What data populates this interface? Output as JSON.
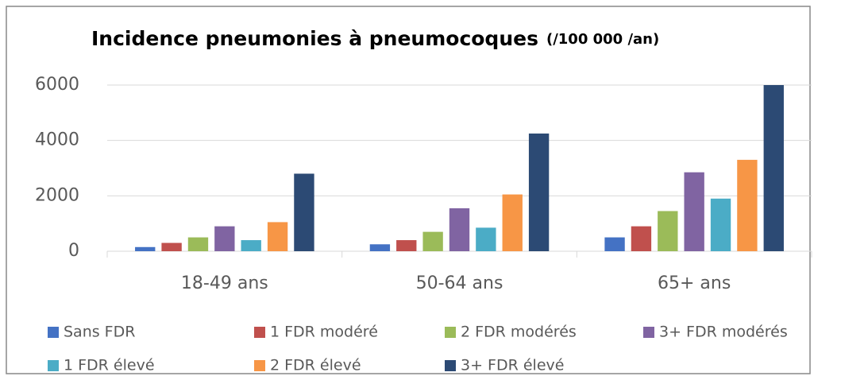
{
  "chart_data": {
    "type": "bar",
    "title": "Incidence pneumonies à pneumocoques",
    "subtitle": "(/100 000 /an)",
    "categories": [
      "18-49 ans",
      "50-64 ans",
      "65+ ans"
    ],
    "series": [
      {
        "name": "Sans FDR",
        "color": "#4472c4",
        "values": [
          150,
          250,
          500
        ]
      },
      {
        "name": "1 FDR modéré",
        "color": "#c0504d",
        "values": [
          300,
          400,
          900
        ]
      },
      {
        "name": "2 FDR modérés",
        "color": "#9bbb59",
        "values": [
          500,
          700,
          1450
        ]
      },
      {
        "name": "3+ FDR modérés",
        "color": "#8064a2",
        "values": [
          900,
          1550,
          2850
        ]
      },
      {
        "name": "1 FDR élevé",
        "color": "#4bacc6",
        "values": [
          400,
          850,
          1900
        ]
      },
      {
        "name": "2 FDR élevé",
        "color": "#f79646",
        "values": [
          1050,
          2050,
          3300
        ]
      },
      {
        "name": "3+ FDR élevé",
        "color": "#2c4a74",
        "values": [
          2800,
          4250,
          6000
        ]
      }
    ],
    "ylim": [
      0,
      6000
    ],
    "yticks": [
      0,
      2000,
      4000,
      6000
    ],
    "grid": true,
    "legend": "bottom"
  }
}
